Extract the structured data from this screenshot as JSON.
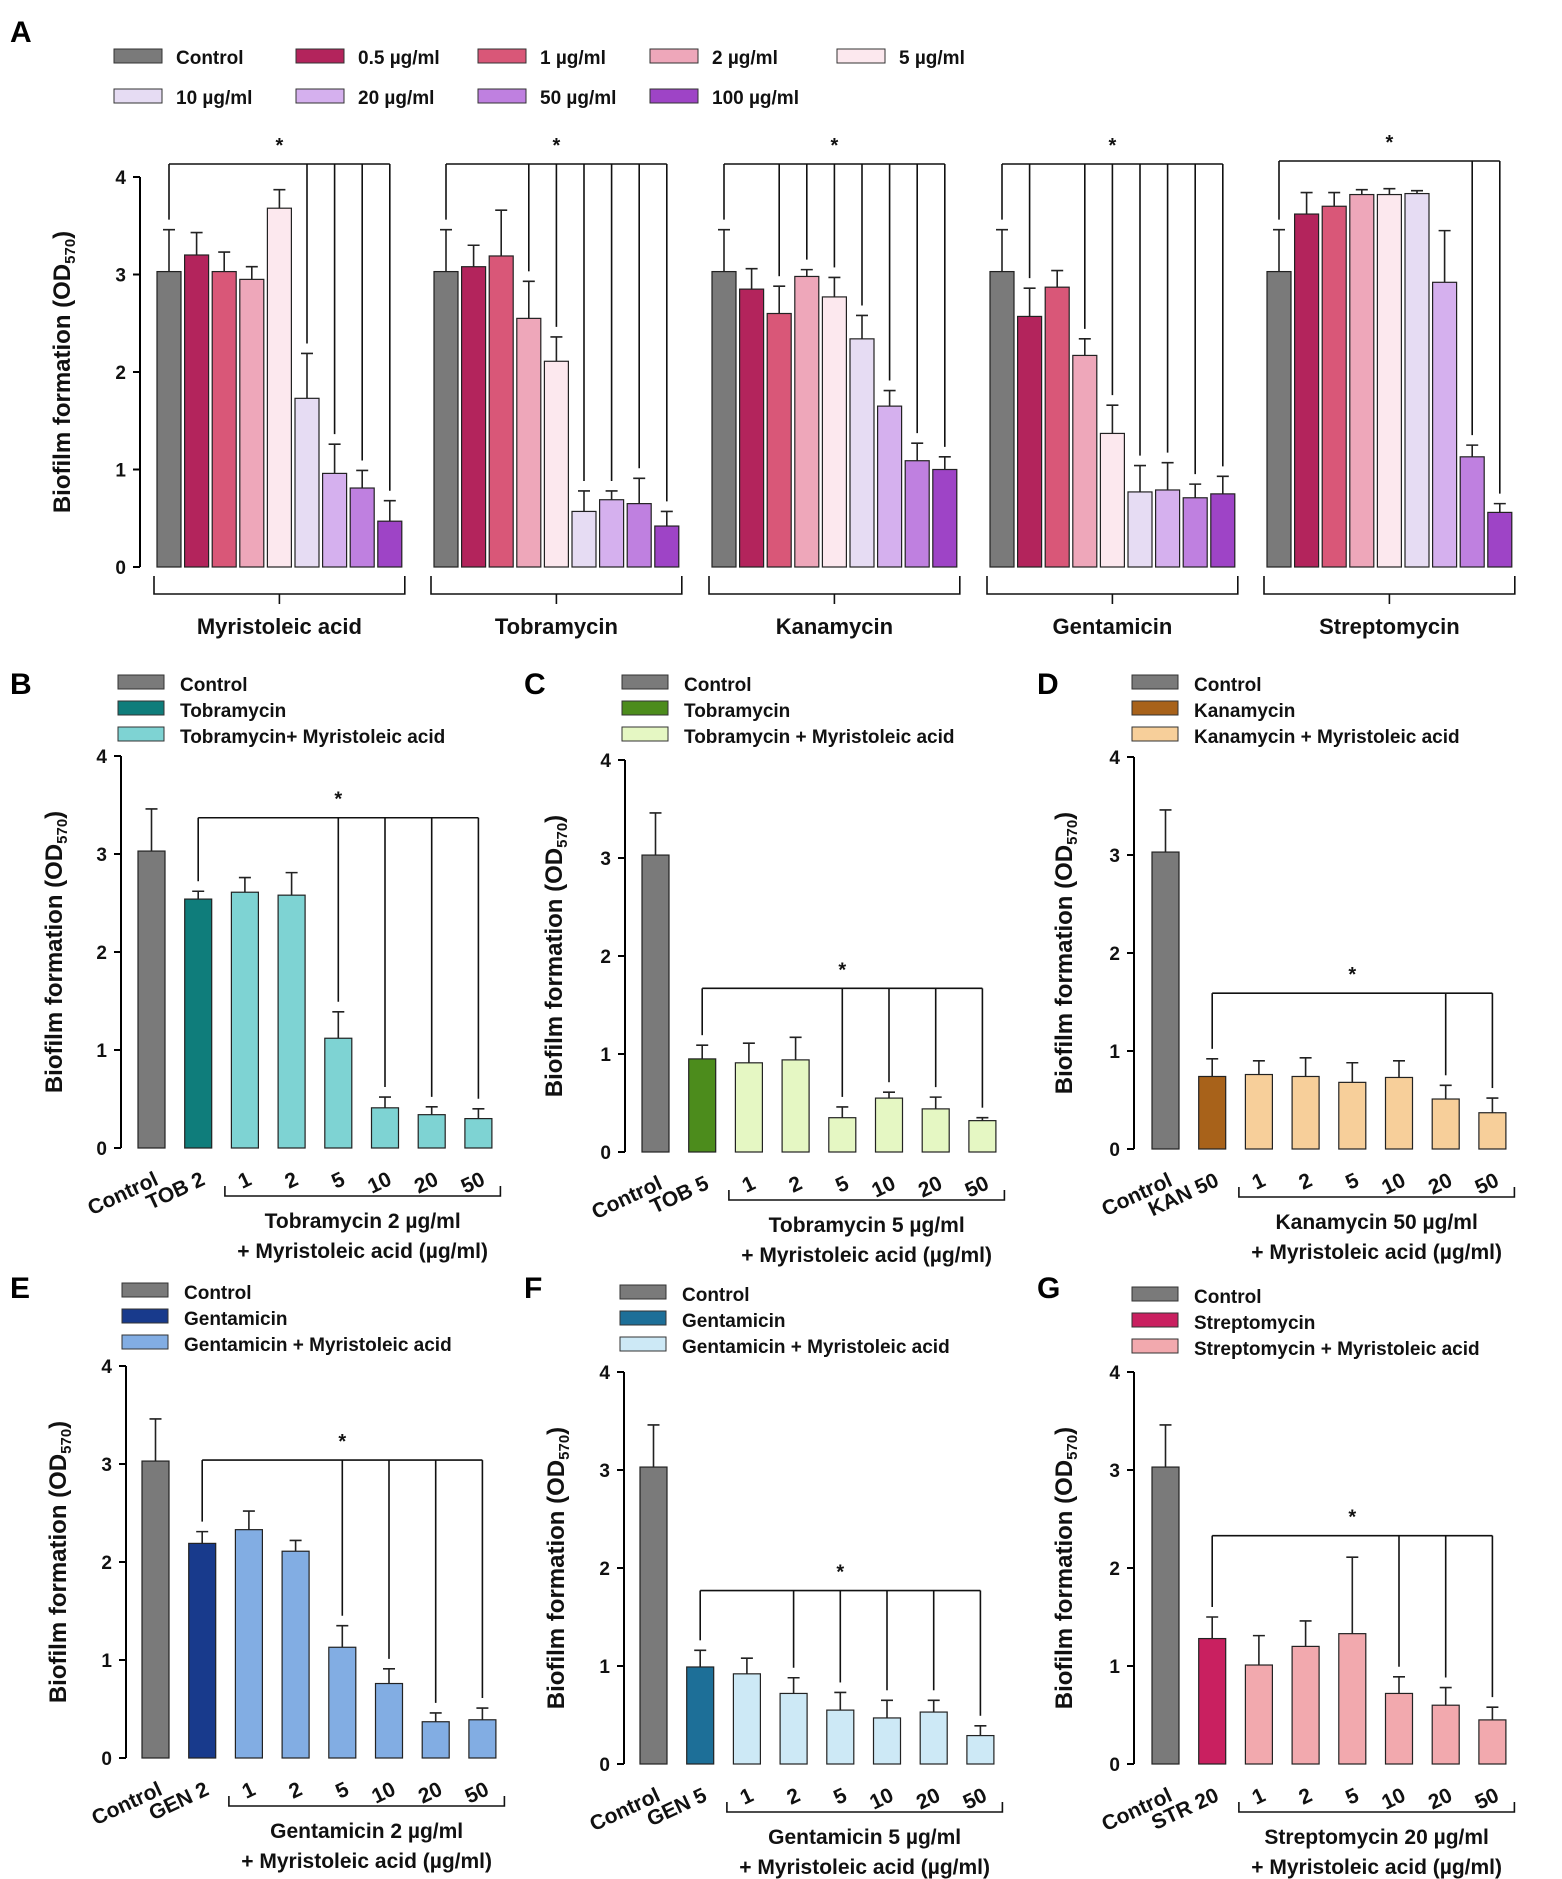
{
  "chart_data": [
    {
      "panel": "A",
      "type": "bar",
      "ylabel": "Biofilm formation (OD570)",
      "ylabel_main": "Biofilm formation (OD",
      "ylabel_sub": "570",
      "ylabel_close": ")",
      "ylim": [
        0,
        4
      ],
      "yticks": [
        "0",
        "1",
        "2",
        "3",
        "4"
      ],
      "legend": [
        {
          "name": "Control",
          "color": "#7a7a7a"
        },
        {
          "name": "0.5 µg/ml",
          "color": "#b3245c"
        },
        {
          "name": "1 µg/ml",
          "color": "#d95778"
        },
        {
          "name": "2 µg/ml",
          "color": "#eea7ba"
        },
        {
          "name": "5 µg/ml",
          "color": "#fce8ee"
        },
        {
          "name": "10 µg/ml",
          "color": "#e6dcf3"
        },
        {
          "name": "20 µg/ml",
          "color": "#d5b0ee"
        },
        {
          "name": "50 µg/ml",
          "color": "#bf80e0"
        },
        {
          "name": "100 µg/ml",
          "color": "#9e44c6"
        }
      ],
      "series_order": [
        "Control",
        "0.5 µg/ml",
        "1 µg/ml",
        "2 µg/ml",
        "5 µg/ml",
        "10 µg/ml",
        "20 µg/ml",
        "50 µg/ml",
        "100 µg/ml"
      ],
      "groups": [
        {
          "name": "Myristoleic acid",
          "values": [
            3.03,
            3.2,
            3.03,
            2.95,
            3.68,
            1.73,
            0.96,
            0.81,
            0.47
          ],
          "errors": [
            0.43,
            0.23,
            0.2,
            0.13,
            0.19,
            0.46,
            0.3,
            0.18,
            0.21
          ],
          "sig": [
            5,
            6,
            7,
            8
          ]
        },
        {
          "name": "Tobramycin",
          "values": [
            3.03,
            3.08,
            3.19,
            2.55,
            2.11,
            0.57,
            0.69,
            0.65,
            0.42
          ],
          "errors": [
            0.43,
            0.22,
            0.47,
            0.38,
            0.25,
            0.21,
            0.09,
            0.26,
            0.15
          ],
          "sig": [
            3,
            4,
            5,
            6,
            7,
            8
          ]
        },
        {
          "name": "Kanamycin",
          "values": [
            3.03,
            2.85,
            2.6,
            2.98,
            2.77,
            2.34,
            1.65,
            1.09,
            1.0
          ],
          "errors": [
            0.43,
            0.21,
            0.28,
            0.07,
            0.2,
            0.24,
            0.16,
            0.18,
            0.13
          ],
          "sig": [
            2,
            3,
            4,
            5,
            6,
            7,
            8
          ]
        },
        {
          "name": "Gentamicin",
          "values": [
            3.03,
            2.57,
            2.87,
            2.17,
            1.37,
            0.77,
            0.79,
            0.71,
            0.75
          ],
          "errors": [
            0.43,
            0.29,
            0.17,
            0.17,
            0.29,
            0.27,
            0.28,
            0.14,
            0.18
          ],
          "sig": [
            1,
            3,
            4,
            5,
            6,
            7,
            8
          ]
        },
        {
          "name": "Streptomycin",
          "values": [
            3.03,
            3.62,
            3.7,
            3.82,
            3.82,
            3.83,
            2.92,
            1.13,
            0.56
          ],
          "errors": [
            0.43,
            0.22,
            0.14,
            0.05,
            0.06,
            0.03,
            0.53,
            0.12,
            0.09
          ],
          "sig": [
            7,
            8
          ]
        }
      ],
      "significance_label": "*"
    },
    {
      "panel": "B",
      "type": "bar",
      "ylabel_main": "Biofilm formation (OD",
      "ylabel_sub": "570",
      "ylabel_close": ")",
      "ylim": [
        0,
        4
      ],
      "yticks": [
        "0",
        "1",
        "2",
        "3",
        "4"
      ],
      "legend": [
        {
          "name": "Control",
          "color": "#7a7a7a"
        },
        {
          "name": "Tobramycin",
          "color": "#0f7d7b"
        },
        {
          "name": "Tobramycin+ Myristoleic acid",
          "color": "#7ed3d3"
        }
      ],
      "categories": [
        "Control",
        "TOB 2",
        "1",
        "2",
        "5",
        "10",
        "20",
        "50"
      ],
      "values": [
        3.03,
        2.54,
        2.61,
        2.58,
        1.12,
        0.41,
        0.34,
        0.3
      ],
      "errors": [
        0.43,
        0.08,
        0.15,
        0.23,
        0.27,
        0.11,
        0.08,
        0.1
      ],
      "colors": [
        "#7a7a7a",
        "#0f7d7b",
        "#7ed3d3",
        "#7ed3d3",
        "#7ed3d3",
        "#7ed3d3",
        "#7ed3d3",
        "#7ed3d3"
      ],
      "sig_ref": 1,
      "sig": [
        4,
        5,
        6,
        7
      ],
      "sig_y": 3.37,
      "significance_label": "*",
      "xlabel_line1": "Tobramycin 2 µg/ml",
      "xlabel_line2": "+ Myristoleic acid (µg/ml)"
    },
    {
      "panel": "C",
      "type": "bar",
      "ylabel_main": "Biofilm formation (OD",
      "ylabel_sub": "570",
      "ylabel_close": ")",
      "ylim": [
        0,
        4
      ],
      "yticks": [
        "0",
        "1",
        "2",
        "3",
        "4"
      ],
      "legend": [
        {
          "name": "Control",
          "color": "#7a7a7a"
        },
        {
          "name": "Tobramycin",
          "color": "#4c8c1c"
        },
        {
          "name": "Tobramycin + Myristoleic acid",
          "color": "#e5f7c3"
        }
      ],
      "categories": [
        "Control",
        "TOB 5",
        "1",
        "2",
        "5",
        "10",
        "20",
        "50"
      ],
      "values": [
        3.03,
        0.95,
        0.91,
        0.94,
        0.35,
        0.55,
        0.44,
        0.32
      ],
      "errors": [
        0.43,
        0.14,
        0.2,
        0.23,
        0.11,
        0.06,
        0.12,
        0.03
      ],
      "colors": [
        "#7a7a7a",
        "#4c8c1c",
        "#e5f7c3",
        "#e5f7c3",
        "#e5f7c3",
        "#e5f7c3",
        "#e5f7c3",
        "#e5f7c3"
      ],
      "sig_ref": 1,
      "sig": [
        4,
        5,
        6,
        7
      ],
      "sig_y": 1.67,
      "significance_label": "*",
      "xlabel_line1": "Tobramycin 5 µg/ml",
      "xlabel_line2": "+ Myristoleic acid (µg/ml)"
    },
    {
      "panel": "D",
      "type": "bar",
      "ylabel_main": "Biofilm formation (OD",
      "ylabel_sub": "570",
      "ylabel_close": ")",
      "ylim": [
        0,
        4
      ],
      "yticks": [
        "0",
        "1",
        "2",
        "3",
        "4"
      ],
      "legend": [
        {
          "name": "Control",
          "color": "#7a7a7a"
        },
        {
          "name": "Kanamycin",
          "color": "#a8621a"
        },
        {
          "name": "Kanamycin + Myristoleic acid",
          "color": "#f7cf9a"
        }
      ],
      "categories": [
        "Control",
        "KAN 50",
        "1",
        "2",
        "5",
        "10",
        "20",
        "50"
      ],
      "values": [
        3.03,
        0.74,
        0.76,
        0.74,
        0.68,
        0.73,
        0.51,
        0.37
      ],
      "errors": [
        0.43,
        0.18,
        0.14,
        0.19,
        0.2,
        0.17,
        0.14,
        0.15
      ],
      "colors": [
        "#7a7a7a",
        "#a8621a",
        "#f7cf9a",
        "#f7cf9a",
        "#f7cf9a",
        "#f7cf9a",
        "#f7cf9a",
        "#f7cf9a"
      ],
      "sig_ref": 1,
      "sig": [
        6,
        7
      ],
      "sig_y": 1.59,
      "significance_label": "*",
      "xlabel_line1": "Kanamycin 50 µg/ml",
      "xlabel_line2": "+ Myristoleic acid (µg/ml)"
    },
    {
      "panel": "E",
      "type": "bar",
      "ylabel_main": "Biofilm formation (OD",
      "ylabel_sub": "570",
      "ylabel_close": ")",
      "ylim": [
        0,
        4
      ],
      "yticks": [
        "0",
        "1",
        "2",
        "3",
        "4"
      ],
      "legend": [
        {
          "name": "Control",
          "color": "#7a7a7a"
        },
        {
          "name": "Gentamicin",
          "color": "#183a8c"
        },
        {
          "name": "Gentamicin + Myristoleic acid",
          "color": "#82ade3"
        }
      ],
      "categories": [
        "Control",
        "GEN 2",
        "1",
        "2",
        "5",
        "10",
        "20",
        "50"
      ],
      "values": [
        3.03,
        2.19,
        2.33,
        2.11,
        1.13,
        0.76,
        0.37,
        0.39
      ],
      "errors": [
        0.43,
        0.12,
        0.19,
        0.11,
        0.22,
        0.15,
        0.09,
        0.12
      ],
      "colors": [
        "#7a7a7a",
        "#183a8c",
        "#82ade3",
        "#82ade3",
        "#82ade3",
        "#82ade3",
        "#82ade3",
        "#82ade3"
      ],
      "sig_ref": 1,
      "sig": [
        4,
        5,
        6,
        7
      ],
      "sig_y": 3.04,
      "significance_label": "*",
      "xlabel_line1": "Gentamicin 2 µg/ml",
      "xlabel_line2": "+ Myristoleic acid (µg/ml)"
    },
    {
      "panel": "F",
      "type": "bar",
      "ylabel_main": "Biofilm formation (OD",
      "ylabel_sub": "570",
      "ylabel_close": ")",
      "ylim": [
        0,
        4
      ],
      "yticks": [
        "0",
        "1",
        "2",
        "3",
        "4"
      ],
      "legend": [
        {
          "name": "Control",
          "color": "#7a7a7a"
        },
        {
          "name": "Gentamicin",
          "color": "#1d6f98"
        },
        {
          "name": "Gentamicin + Myristoleic acid",
          "color": "#cde9f6"
        }
      ],
      "categories": [
        "Control",
        "GEN 5",
        "1",
        "2",
        "5",
        "10",
        "20",
        "50"
      ],
      "values": [
        3.03,
        0.99,
        0.92,
        0.72,
        0.55,
        0.47,
        0.53,
        0.29
      ],
      "errors": [
        0.43,
        0.17,
        0.16,
        0.16,
        0.18,
        0.18,
        0.12,
        0.1
      ],
      "colors": [
        "#7a7a7a",
        "#1d6f98",
        "#cde9f6",
        "#cde9f6",
        "#cde9f6",
        "#cde9f6",
        "#cde9f6",
        "#cde9f6"
      ],
      "sig_ref": 1,
      "sig": [
        3,
        4,
        5,
        6,
        7
      ],
      "sig_y": 1.77,
      "significance_label": "*",
      "xlabel_line1": "Gentamicin 5 µg/ml",
      "xlabel_line2": "+ Myristoleic acid (µg/ml)"
    },
    {
      "panel": "G",
      "type": "bar",
      "ylabel_main": "Biofilm formation (OD",
      "ylabel_sub": "570",
      "ylabel_close": ")",
      "ylim": [
        0,
        4
      ],
      "yticks": [
        "0",
        "1",
        "2",
        "3",
        "4"
      ],
      "legend": [
        {
          "name": "Control",
          "color": "#7a7a7a"
        },
        {
          "name": "Streptomycin",
          "color": "#c92060"
        },
        {
          "name": "Streptomycin + Myristoleic acid",
          "color": "#f2a9ae"
        }
      ],
      "categories": [
        "Control",
        "STR 20",
        "1",
        "2",
        "5",
        "10",
        "20",
        "50"
      ],
      "values": [
        3.03,
        1.28,
        1.01,
        1.2,
        1.33,
        0.72,
        0.6,
        0.45
      ],
      "errors": [
        0.43,
        0.22,
        0.3,
        0.26,
        0.78,
        0.17,
        0.18,
        0.13
      ],
      "colors": [
        "#7a7a7a",
        "#c92060",
        "#f2a9ae",
        "#f2a9ae",
        "#f2a9ae",
        "#f2a9ae",
        "#f2a9ae",
        "#f2a9ae"
      ],
      "sig_ref": 1,
      "sig": [
        5,
        6,
        7
      ],
      "sig_y": 2.33,
      "significance_label": "*",
      "xlabel_line1": "Streptomycin 20 µg/ml",
      "xlabel_line2": "+ Myristoleic acid (µg/ml)"
    }
  ]
}
